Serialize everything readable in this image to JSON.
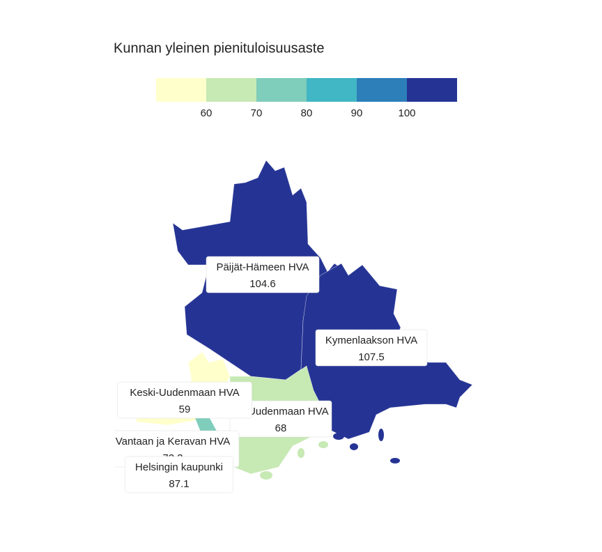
{
  "title": "Kunnan yleinen pienituloisuusaste",
  "legend": {
    "ticks": [
      60,
      70,
      80,
      90,
      100
    ],
    "colors": [
      "#ffffcc",
      "#c7e9b4",
      "#7fcdbb",
      "#41b6c4",
      "#2c7fb8",
      "#253494"
    ]
  },
  "regions": [
    {
      "name": "Päijät-Hämeen HVA",
      "value": 104.6
    },
    {
      "name": "Kymenlaakson HVA",
      "value": 107.5
    },
    {
      "name": "Itä-Uudenmaan HVA",
      "value": 68
    },
    {
      "name": "Keski-Uudenmaan HVA",
      "value": 59
    },
    {
      "name": "Vantaan ja Keravan HVA",
      "value": 73.3
    },
    {
      "name": "Helsingin kaupunki",
      "value": 87.1
    }
  ]
}
